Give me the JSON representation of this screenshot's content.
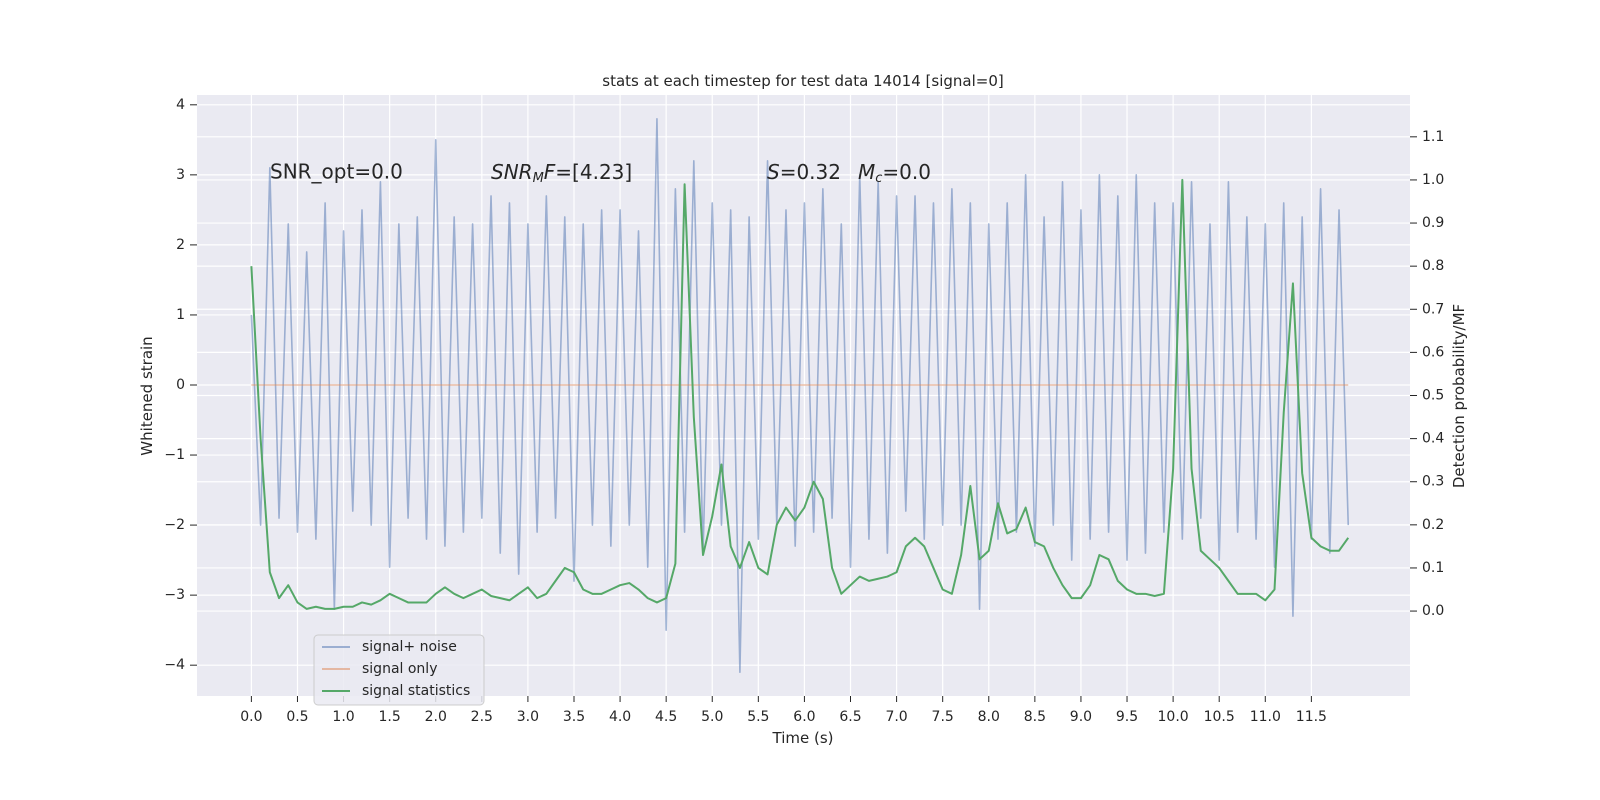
{
  "chart_data": {
    "type": "line",
    "title": "stats at each timestep for test data 14014 [signal=0]",
    "xlabel": "Time (s)",
    "ylabel": "Whitened strain",
    "y2label": "Detection probability/MF",
    "annotations": [
      "SNR_opt=0.0",
      [
        "SNR",
        "M",
        "F",
        "=[4.23]"
      ],
      [
        "S",
        "=0.32"
      ],
      [
        "M",
        "c",
        "=0.0"
      ]
    ],
    "x": [
      0,
      0.1,
      0.2,
      0.3,
      0.4,
      0.5,
      0.6,
      0.7,
      0.8,
      0.9,
      1,
      1.1,
      1.2,
      1.3,
      1.4,
      1.5,
      1.6,
      1.7,
      1.8,
      1.9,
      2,
      2.1,
      2.2,
      2.3,
      2.4,
      2.5,
      2.6,
      2.7,
      2.8,
      2.9,
      3,
      3.1,
      3.2,
      3.3,
      3.4,
      3.5,
      3.6,
      3.7,
      3.8,
      3.9,
      4,
      4.1,
      4.2,
      4.3,
      4.4,
      4.5,
      4.6,
      4.7,
      4.8,
      4.9,
      5,
      5.1,
      5.2,
      5.3,
      5.4,
      5.5,
      5.6,
      5.7,
      5.8,
      5.9,
      6,
      6.1,
      6.2,
      6.3,
      6.4,
      6.5,
      6.6,
      6.7,
      6.8,
      6.9,
      7,
      7.1,
      7.2,
      7.3,
      7.4,
      7.5,
      7.6,
      7.7,
      7.8,
      7.9,
      8,
      8.1,
      8.2,
      8.3,
      8.4,
      8.5,
      8.6,
      8.7,
      8.8,
      8.9,
      9,
      9.1,
      9.2,
      9.3,
      9.4,
      9.5,
      9.6,
      9.7,
      9.8,
      9.9,
      10,
      10.1,
      10.2,
      10.3,
      10.4,
      10.5,
      10.6,
      10.7,
      10.8,
      10.9,
      11,
      11.1,
      11.2,
      11.3,
      11.4,
      11.5,
      11.6,
      11.7,
      11.8,
      11.9
    ],
    "series": [
      {
        "name": "signal+ noise",
        "color": "#4c72b0",
        "alpha": 0.5,
        "values": [
          1.0,
          -2.0,
          3.1,
          -1.9,
          2.3,
          -2.1,
          1.9,
          -2.2,
          2.6,
          -3.2,
          2.2,
          -1.8,
          2.5,
          -2.0,
          2.9,
          -2.6,
          2.3,
          -1.9,
          2.4,
          -2.2,
          3.5,
          -2.3,
          2.4,
          -2.1,
          2.3,
          -1.9,
          2.7,
          -2.4,
          2.6,
          -2.7,
          2.3,
          -2.1,
          2.7,
          -1.9,
          2.4,
          -2.8,
          2.3,
          -2.0,
          2.5,
          -2.3,
          2.5,
          -2.0,
          2.2,
          -2.6,
          3.8,
          -3.5,
          2.8,
          -2.1,
          3.2,
          -2.4,
          2.6,
          -2.0,
          2.5,
          -4.1,
          2.4,
          -2.2,
          3.2,
          -2.0,
          2.5,
          -2.3,
          2.6,
          -2.1,
          2.8,
          -1.9,
          2.3,
          -2.6,
          3.0,
          -2.2,
          2.9,
          -2.4,
          2.7,
          -1.8,
          2.7,
          -2.2,
          2.6,
          -2.0,
          2.8,
          -2.0,
          2.6,
          -3.2,
          2.3,
          -2.2,
          2.6,
          -2.1,
          3.0,
          -2.3,
          2.4,
          -2.0,
          2.9,
          -2.5,
          2.5,
          -2.2,
          3.0,
          -2.1,
          2.7,
          -2.5,
          3.0,
          -2.4,
          2.6,
          -2.1,
          2.6,
          -2.2,
          2.9,
          -1.9,
          2.3,
          -2.5,
          2.9,
          -2.1,
          2.4,
          -2.2,
          2.3,
          -2.6,
          2.6,
          -3.3,
          2.4,
          -2.2,
          2.8,
          -2.4,
          2.5,
          -2.0
        ]
      },
      {
        "name": "signal only",
        "color": "#dd8452",
        "alpha": 0.5,
        "x": [
          0,
          11.9
        ],
        "values": [
          0,
          0
        ]
      },
      {
        "name": "signal statistics",
        "color": "#55a868",
        "alpha": 1,
        "axis": "y2",
        "values": [
          0.8,
          0.4,
          0.09,
          0.03,
          0.06,
          0.02,
          0.005,
          0.01,
          0.005,
          0.005,
          0.01,
          0.01,
          0.02,
          0.015,
          0.025,
          0.04,
          0.03,
          0.02,
          0.02,
          0.02,
          0.04,
          0.055,
          0.04,
          0.03,
          0.04,
          0.05,
          0.035,
          0.03,
          0.025,
          0.04,
          0.055,
          0.03,
          0.04,
          0.07,
          0.1,
          0.09,
          0.05,
          0.04,
          0.04,
          0.05,
          0.06,
          0.065,
          0.05,
          0.03,
          0.02,
          0.03,
          0.11,
          0.99,
          0.45,
          0.13,
          0.22,
          0.34,
          0.15,
          0.1,
          0.16,
          0.1,
          0.085,
          0.2,
          0.24,
          0.21,
          0.24,
          0.3,
          0.26,
          0.1,
          0.04,
          0.06,
          0.08,
          0.07,
          0.075,
          0.08,
          0.09,
          0.15,
          0.17,
          0.15,
          0.1,
          0.05,
          0.04,
          0.13,
          0.29,
          0.12,
          0.14,
          0.25,
          0.18,
          0.19,
          0.24,
          0.16,
          0.15,
          0.1,
          0.06,
          0.03,
          0.03,
          0.06,
          0.13,
          0.12,
          0.07,
          0.05,
          0.04,
          0.04,
          0.035,
          0.04,
          0.33,
          1.0,
          0.33,
          0.14,
          0.12,
          0.1,
          0.07,
          0.04,
          0.04,
          0.04,
          0.025,
          0.05,
          0.46,
          0.76,
          0.32,
          0.17,
          0.15,
          0.14,
          0.14,
          0.17
        ]
      }
    ],
    "xlim": [
      -0.59,
      12.57
    ],
    "xticks": [
      {
        "value": 0,
        "label": "0.0"
      },
      0.5,
      {
        "value": 1,
        "label": "1.0"
      },
      1.5,
      {
        "value": 2,
        "label": "2.0"
      },
      2.5,
      {
        "value": 3,
        "label": "3.0"
      },
      3.5,
      {
        "value": 4,
        "label": "4.0"
      },
      4.5,
      {
        "value": 5,
        "label": "5.0"
      },
      5.5,
      {
        "value": 6,
        "label": "6.0"
      },
      6.5,
      {
        "value": 7,
        "label": "7.0"
      },
      7.5,
      {
        "value": 8,
        "label": "8.0"
      },
      8.5,
      {
        "value": 9,
        "label": "9.0"
      },
      9.5,
      {
        "value": 10,
        "label": "10.0"
      },
      10.5,
      {
        "value": 11,
        "label": "11.0"
      },
      11.5
    ],
    "ylim": [
      -4.44,
      4.14
    ],
    "yticks": [
      {
        "value": -4,
        "label": "−4"
      },
      {
        "value": -3,
        "label": "−3"
      },
      {
        "value": -2,
        "label": "−2"
      },
      {
        "value": -1,
        "label": "−1"
      },
      0,
      1,
      2,
      3,
      4
    ],
    "y2lim": [
      -0.197,
      1.197
    ],
    "y2ticks": [
      {
        "value": 0,
        "label": "0.0"
      },
      0.1,
      0.2,
      0.3,
      0.4,
      0.5,
      0.6,
      0.7,
      0.8,
      0.9,
      {
        "value": 1,
        "label": "1.0"
      },
      1.1
    ],
    "grid": true,
    "legend": "lower left"
  }
}
